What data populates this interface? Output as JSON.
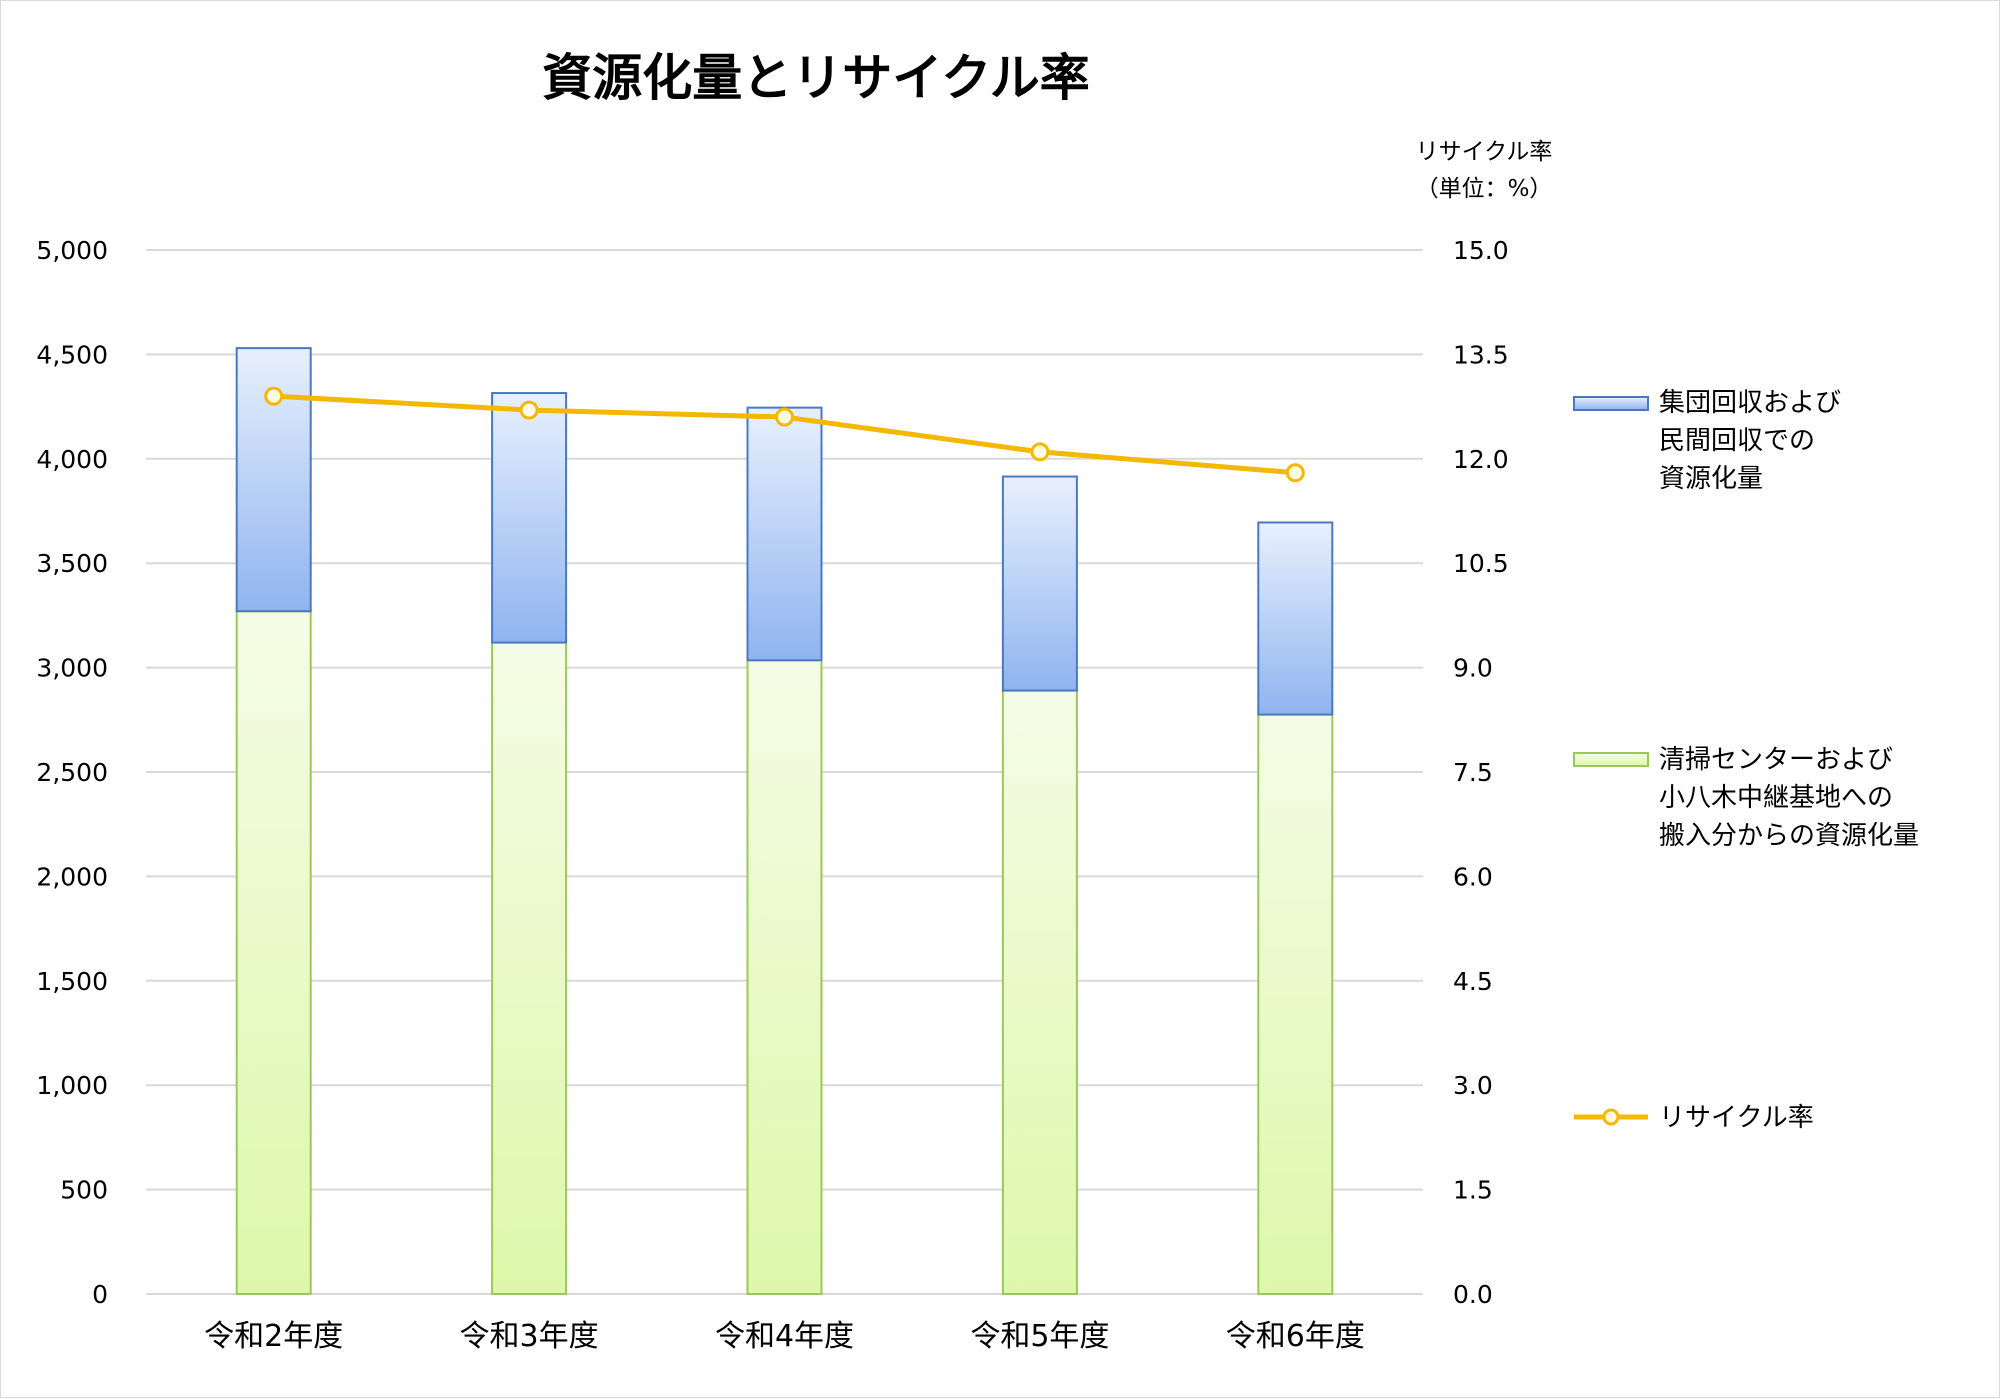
{
  "chart_data": {
    "type": "bar",
    "title": "資源化量とリサイクル率",
    "categories": [
      "令和2年度",
      "令和3年度",
      "令和4年度",
      "令和5年度",
      "令和6年度"
    ],
    "series": [
      {
        "name": "清掃センターおよび小八木中継基地への搬入分からの資源化量",
        "name_lines": [
          "清掃センターおよび",
          "小八木中継基地への",
          "搬入分からの資源化量"
        ],
        "type": "bar",
        "stack": "total",
        "axis": "left",
        "values": [
          3270,
          3120,
          3035,
          2890,
          2775
        ]
      },
      {
        "name": "集団回収および民間回収での資源化量",
        "name_lines": [
          "集団回収および",
          "民間回収での",
          "資源化量"
        ],
        "type": "bar",
        "stack": "total",
        "axis": "left",
        "values": [
          1260,
          1195,
          1210,
          1025,
          920
        ]
      },
      {
        "name": "リサイクル率",
        "name_lines": [
          "リサイクル率"
        ],
        "type": "line",
        "axis": "right",
        "values": [
          12.9,
          12.7,
          12.6,
          12.1,
          11.8
        ]
      }
    ],
    "y_left": {
      "ylim": [
        0,
        5000
      ],
      "ticks": [
        0,
        500,
        1000,
        1500,
        2000,
        2500,
        3000,
        3500,
        4000,
        4500,
        5000
      ],
      "tick_labels": [
        "0",
        "500",
        "1,000",
        "1,500",
        "2,000",
        "2,500",
        "3,000",
        "3,500",
        "4,000",
        "4,500",
        "5,000"
      ]
    },
    "y_right": {
      "label_lines": [
        "リサイクル率",
        "（単位：%）"
      ],
      "ylim": [
        0,
        15
      ],
      "ticks": [
        0,
        1.5,
        3,
        4.5,
        6,
        7.5,
        9,
        10.5,
        12,
        13.5,
        15
      ],
      "tick_labels": [
        "0.0",
        "1.5",
        "3.0",
        "4.5",
        "6.0",
        "7.5",
        "9.0",
        "10.5",
        "12.0",
        "13.5",
        "15.0"
      ]
    },
    "grid": true,
    "legend_position": "right",
    "colors": {
      "lower_bar_top": "#f5fce6",
      "lower_bar_bottom": "#ddf8aa",
      "lower_bar_border": "#9bc85a",
      "upper_bar_top": "#e8f0fd",
      "upper_bar_bottom": "#8fb4ef",
      "upper_bar_border": "#4a78c2",
      "line": "#f5b800",
      "marker_fill": "#fffbe0",
      "grid": "#d9d9d9"
    }
  }
}
